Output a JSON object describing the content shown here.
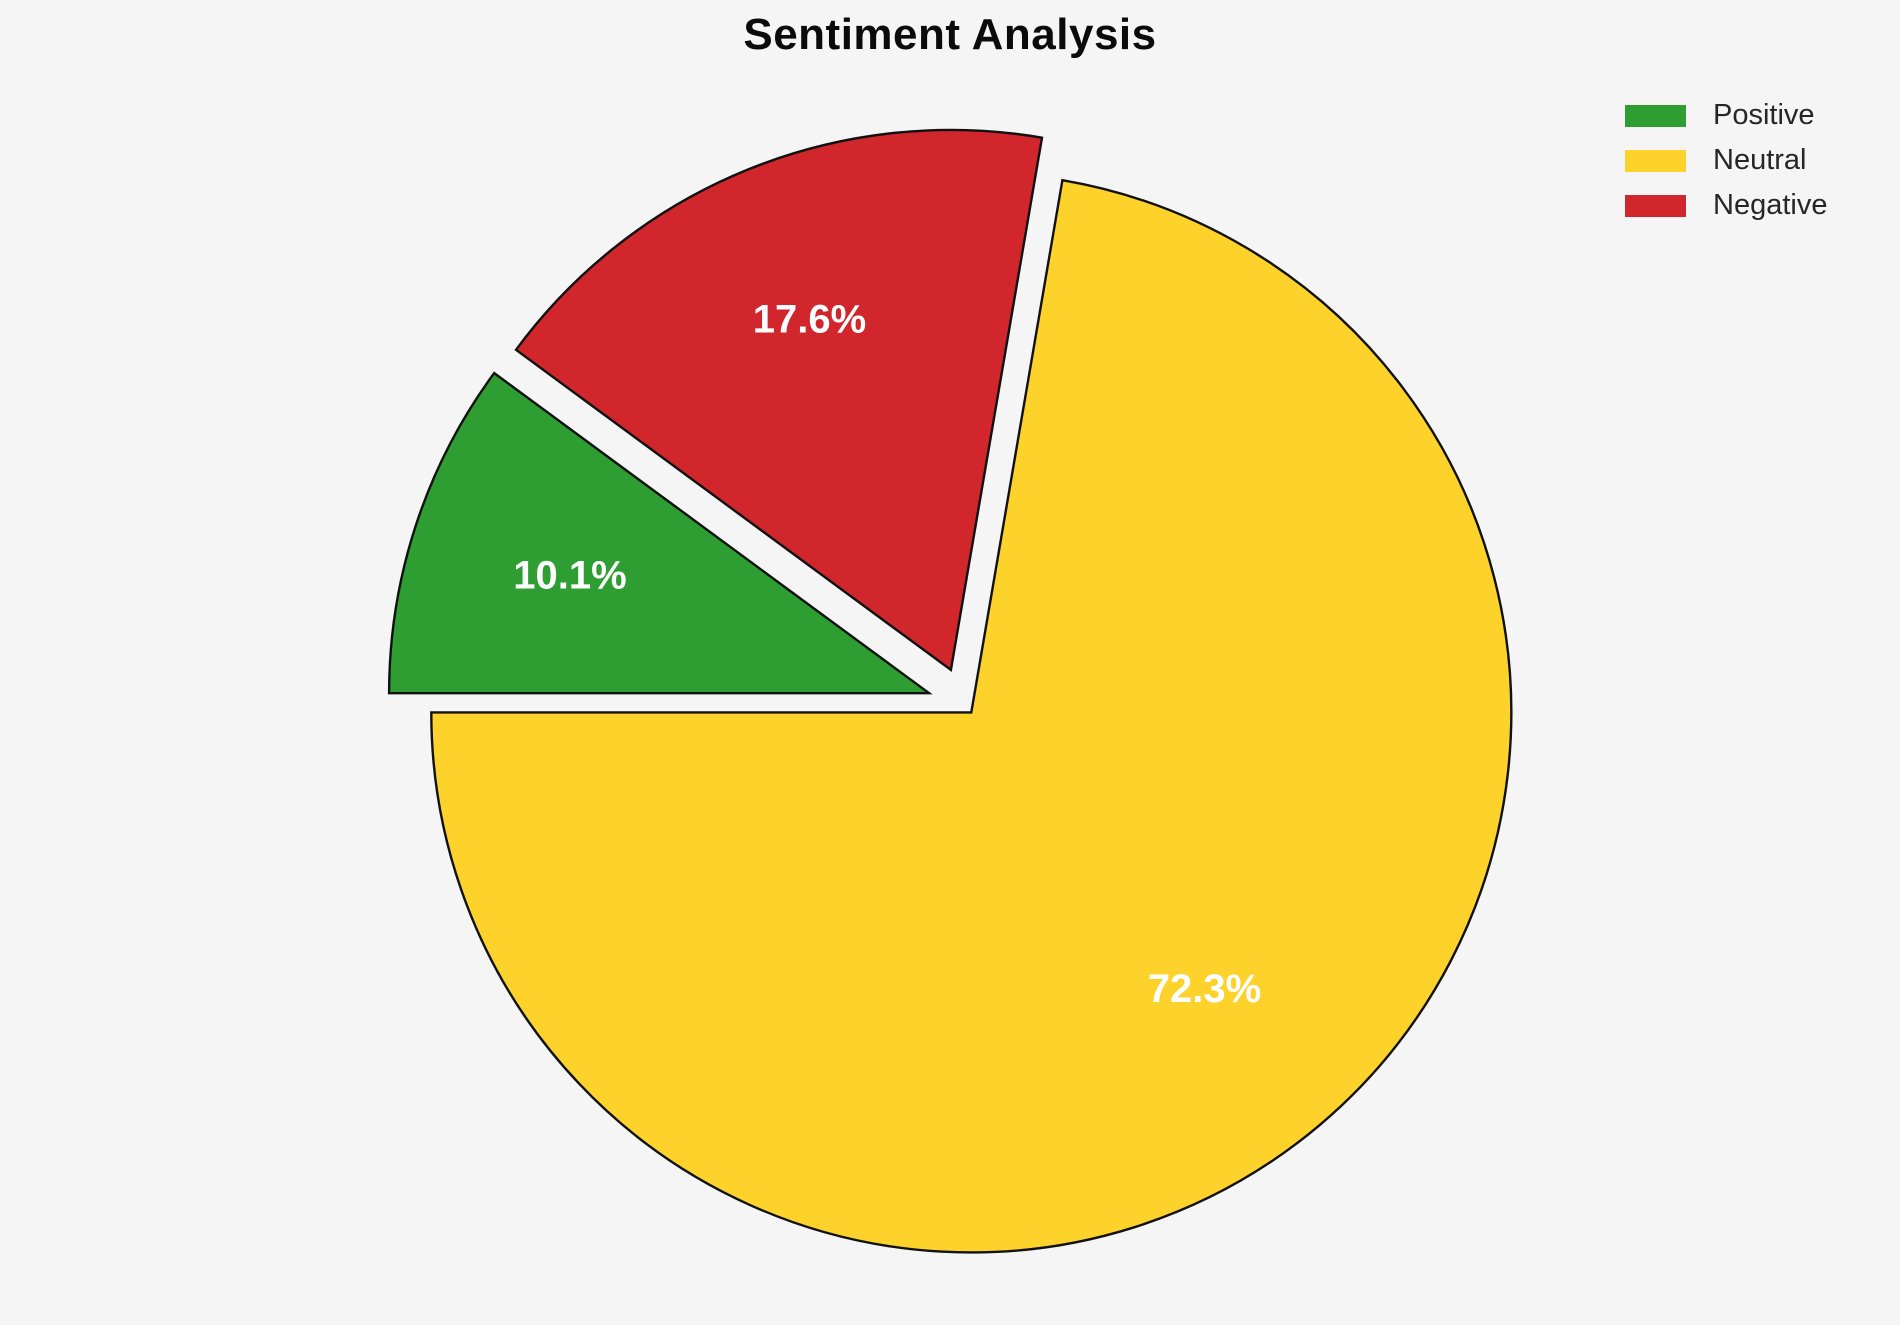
{
  "page": {
    "background": "#f5f5f5"
  },
  "header": {
    "title": "Sentiment Analysis"
  },
  "legend": {
    "position": "upper-right",
    "items": [
      {
        "label": "Positive",
        "color": "#2f9e32"
      },
      {
        "label": "Neutral",
        "color": "#fcd22b"
      },
      {
        "label": "Negative",
        "color": "#d0262c"
      }
    ]
  },
  "chart_data": {
    "type": "pie",
    "title": "Sentiment Analysis",
    "categories": [
      "Positive",
      "Neutral",
      "Negative"
    ],
    "values": [
      10.1,
      72.3,
      17.6
    ],
    "slice_labels": [
      "10.1%",
      "72.3%",
      "17.6%"
    ],
    "colors": {
      "Positive": "#2f9e32",
      "Neutral": "#fcd22b",
      "Negative": "#d0262c"
    },
    "explode": {
      "Positive": 0.07,
      "Neutral": 0.018,
      "Negative": 0.07
    },
    "startangle": 180,
    "counterclock": false,
    "draw_order": [
      "Positive",
      "Negative",
      "Neutral"
    ],
    "label_color": "#ffffff",
    "wedge_edge_color": "#111111",
    "legend_position": "upper right",
    "legend_entries": [
      "Positive",
      "Neutral",
      "Negative"
    ],
    "grid": false
  }
}
